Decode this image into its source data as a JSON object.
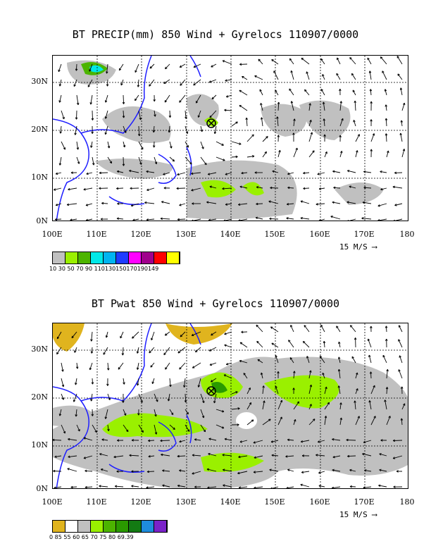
{
  "panels": [
    {
      "title": "BT PRECIP(mm) 850 Wind + Gyrelocs 110907/0000",
      "lat_labels": [
        "30N",
        "20N",
        "10N",
        "0N"
      ],
      "lon_labels": [
        "100E",
        "110E",
        "120E",
        "130E",
        "140E",
        "150E",
        "160E",
        "170E",
        "180"
      ],
      "wind_scale": "15 M/S",
      "colorbar_colors": [
        "#c0c0c0",
        "#9af000",
        "#4cb400",
        "#00e8e8",
        "#00b4f0",
        "#1e3cff",
        "#ff00ff",
        "#a0008c",
        "#ff0000",
        "#ffff00"
      ],
      "colorbar_labels": "10 30 50 70 90 110130150170190149"
    },
    {
      "title": "BT Pwat 850 Wind + Gyrelocs 110907/0000",
      "lat_labels": [
        "30N",
        "20N",
        "10N",
        "0N"
      ],
      "lon_labels": [
        "100E",
        "110E",
        "120E",
        "130E",
        "140E",
        "150E",
        "160E",
        "170E",
        "180"
      ],
      "wind_scale": "15 M/S",
      "colorbar_colors": [
        "#e0b41e",
        "#ffffff",
        "#c0c0c0",
        "#9af000",
        "#4cb400",
        "#2a9a00",
        "#137a13",
        "#1e8cdc",
        "#7a22c8"
      ],
      "colorbar_labels": "0    85    55    60    65    70    75    80 69.39"
    }
  ]
}
